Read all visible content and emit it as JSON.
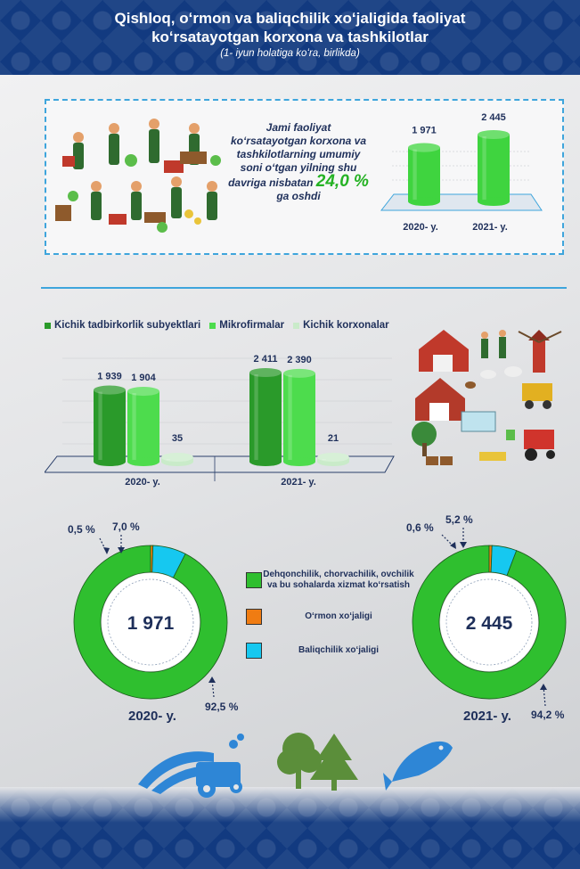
{
  "header": {
    "title_line1": "Qishloq, oʻrmon va baliqchilik xoʻjaligida faoliyat",
    "title_line2": "koʻrsatayotgan korxona va tashkilotlar",
    "subtitle": "(1- iyun holatiga koʻra, birlikda)"
  },
  "summary": {
    "text": "Jami faoliyat koʻrsatayotgan korxona va tashkilotlarning umumiy soni oʻtgan yilning shu davriga nisbatan",
    "growth": "24,0 %",
    "suffix": "ga oshdi"
  },
  "colors": {
    "dark_green": "#2a9a2a",
    "light_green": "#4ddc4d",
    "pale_green": "#c9ebc9",
    "orange": "#f07c12",
    "cyan": "#16c8f0",
    "navy": "#1e2f5a",
    "accent": "#3ea5dc"
  },
  "chart_data": [
    {
      "type": "bar",
      "categories": [
        "2020- y.",
        "2021- y."
      ],
      "values": [
        1971,
        2445
      ],
      "value_labels": [
        "1 971",
        "2 445"
      ]
    },
    {
      "type": "bar",
      "categories": [
        "2020- y.",
        "2021- y."
      ],
      "series": [
        {
          "name": "Kichik tadbirkorlik subyektlari",
          "values": [
            1939,
            2411
          ],
          "labels": [
            "1 939",
            "2 411"
          ]
        },
        {
          "name": "Mikrofirmalar",
          "values": [
            1904,
            2390
          ],
          "labels": [
            "1 904",
            "2 390"
          ]
        },
        {
          "name": "Kichik korxonalar",
          "values": [
            35,
            21
          ],
          "labels": [
            "35",
            "21"
          ]
        }
      ]
    },
    {
      "type": "pie",
      "year": "2020- y.",
      "total": "1 971",
      "slices": [
        {
          "name": "Dehqonchilik, chorvachilik, ovchilik va bu sohalarda xizmat koʻrsatish",
          "value": 92.5,
          "label": "92,5 %"
        },
        {
          "name": "Oʻrmon xoʻjaligi",
          "value": 0.5,
          "label": "0,5 %"
        },
        {
          "name": "Baliqchilik xoʻjaligi",
          "value": 7.0,
          "label": "7,0 %"
        }
      ]
    },
    {
      "type": "pie",
      "year": "2021- y.",
      "total": "2 445",
      "slices": [
        {
          "name": "Dehqonchilik, chorvachilik, ovchilik va bu sohalarda xizmat koʻrsatish",
          "value": 94.2,
          "label": "94,2 %"
        },
        {
          "name": "Oʻrmon xoʻjaligi",
          "value": 0.6,
          "label": "0,6 %"
        },
        {
          "name": "Baliqchilik xoʻjaligi",
          "value": 5.2,
          "label": "5,2 %"
        }
      ]
    }
  ],
  "legend": [
    {
      "label": "Dehqonchilik, chorvachilik, ovchilik va bu sohalarda xizmat koʻrsatish"
    },
    {
      "label": "Oʻrmon xoʻjaligi"
    },
    {
      "label": "Baliqchilik xoʻjaligi"
    }
  ]
}
